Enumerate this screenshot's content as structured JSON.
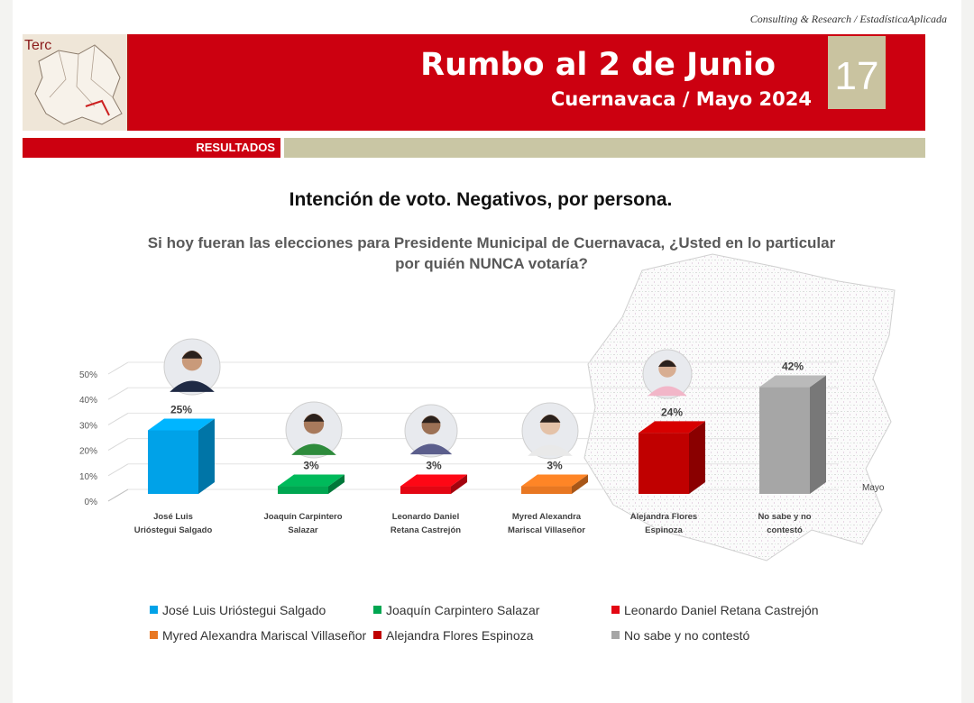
{
  "header": {
    "credit": "Consulting & Research / EstadísticaAplicada",
    "map_tag": "Terc",
    "title": "Rumbo al 2 de Junio",
    "subtitle": "Cuernavaca / Mayo 2024",
    "page_number": "17",
    "section": "RESULTADOS"
  },
  "colors": {
    "brand_red": "#cc0010",
    "section_tan": "#c9c6a4"
  },
  "chart_data": {
    "type": "bar",
    "title": "Intención de voto. Negativos, por persona.",
    "subtitle": "Si hoy fueran las elecciones para Presidente Municipal de Cuernavaca, ¿Usted en lo particular por quién NUNCA votaría?",
    "categories": [
      "José Luis Urióstegui Salgado",
      "Joaquín Carpintero Salazar",
      "Leonardo Daniel Retana Castrejón",
      "Myred Alexandra Mariscal Villaseñor",
      "Alejandra Flores Espinoza",
      "No sabe y no contestó"
    ],
    "values": [
      25,
      3,
      3,
      3,
      24,
      42
    ],
    "data_labels": [
      "25%",
      "3%",
      "3%",
      "3%",
      "24%",
      "42%"
    ],
    "colors": [
      "#00a2e8",
      "#00a651",
      "#e30613",
      "#e87722",
      "#c00000",
      "#a6a6a6"
    ],
    "yticks": [
      "0%",
      "10%",
      "20%",
      "30%",
      "40%",
      "50%"
    ],
    "ylim": [
      0,
      50
    ],
    "grid": true,
    "legend_position": "bottom",
    "annotation": "Mayo"
  },
  "legend": [
    "José Luis Urióstegui Salgado",
    "Joaquín Carpintero Salazar",
    "Leonardo Daniel Retana Castrejón",
    "Myred Alexandra Mariscal Villaseñor",
    "Alejandra Flores Espinoza",
    "No sabe y no contestó"
  ]
}
